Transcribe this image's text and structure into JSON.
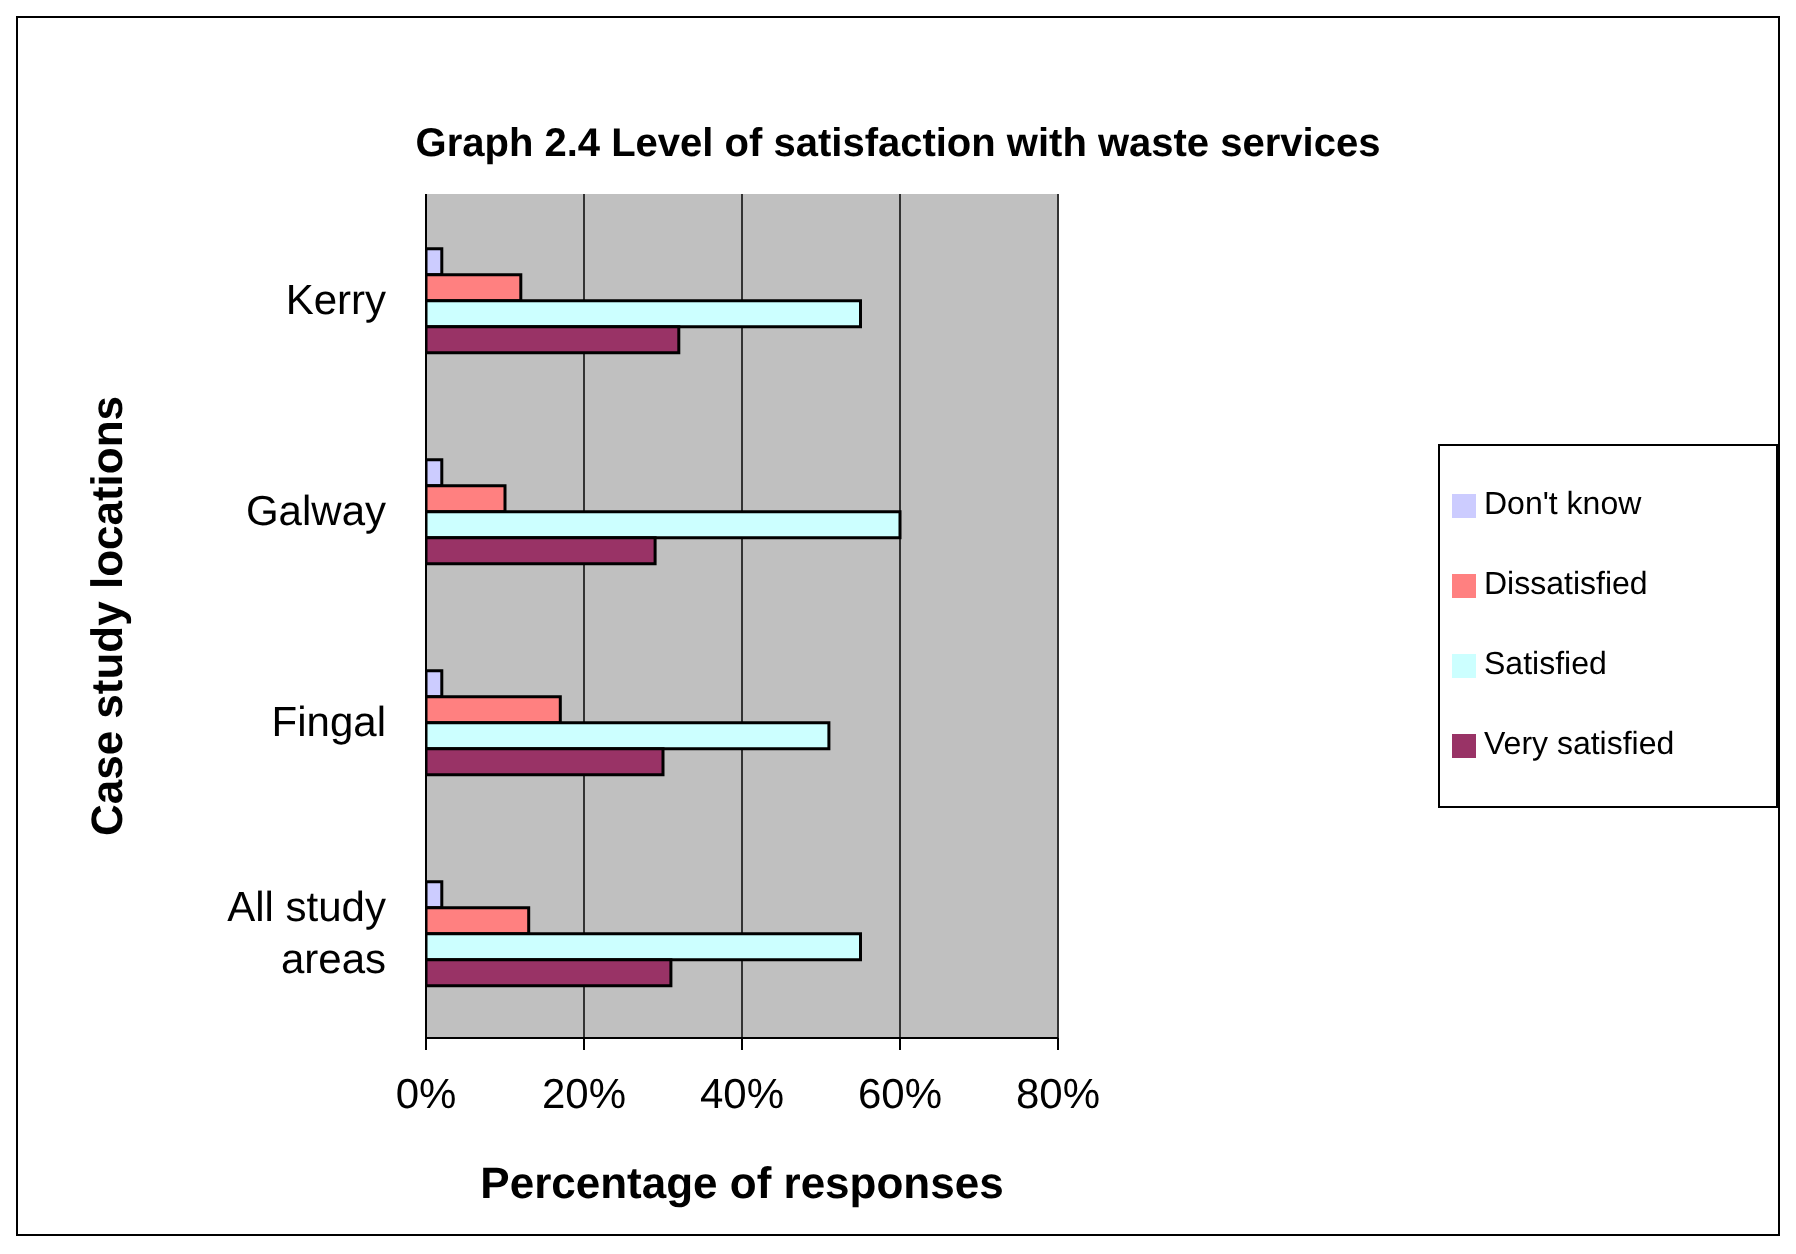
{
  "chart_data": {
    "type": "bar",
    "orientation": "horizontal",
    "title": "Graph 2.4 Level of satisfaction with waste services",
    "xlabel": "Percentage of responses",
    "ylabel": "Case study locations",
    "categories": [
      "Kerry",
      "Galway",
      "Fingal",
      "All study areas"
    ],
    "series": [
      {
        "name": "Don't know",
        "color": "#ccccff",
        "values": [
          2,
          2,
          2,
          2
        ]
      },
      {
        "name": "Dissatisfied",
        "color": "#ff8080",
        "values": [
          12,
          10,
          17,
          13
        ]
      },
      {
        "name": "Satisfied",
        "color": "#ccffff",
        "values": [
          55,
          60,
          51,
          55
        ]
      },
      {
        "name": "Very satisfied",
        "color": "#993366",
        "values": [
          32,
          29,
          30,
          31
        ]
      }
    ],
    "xlim": [
      0,
      80
    ],
    "xticks": [
      {
        "value": 0,
        "label": "0%"
      },
      {
        "value": 20,
        "label": "20%"
      },
      {
        "value": 40,
        "label": "40%"
      },
      {
        "value": 60,
        "label": "60%"
      },
      {
        "value": 80,
        "label": "80%"
      }
    ],
    "grid": "x",
    "legend": "right"
  }
}
